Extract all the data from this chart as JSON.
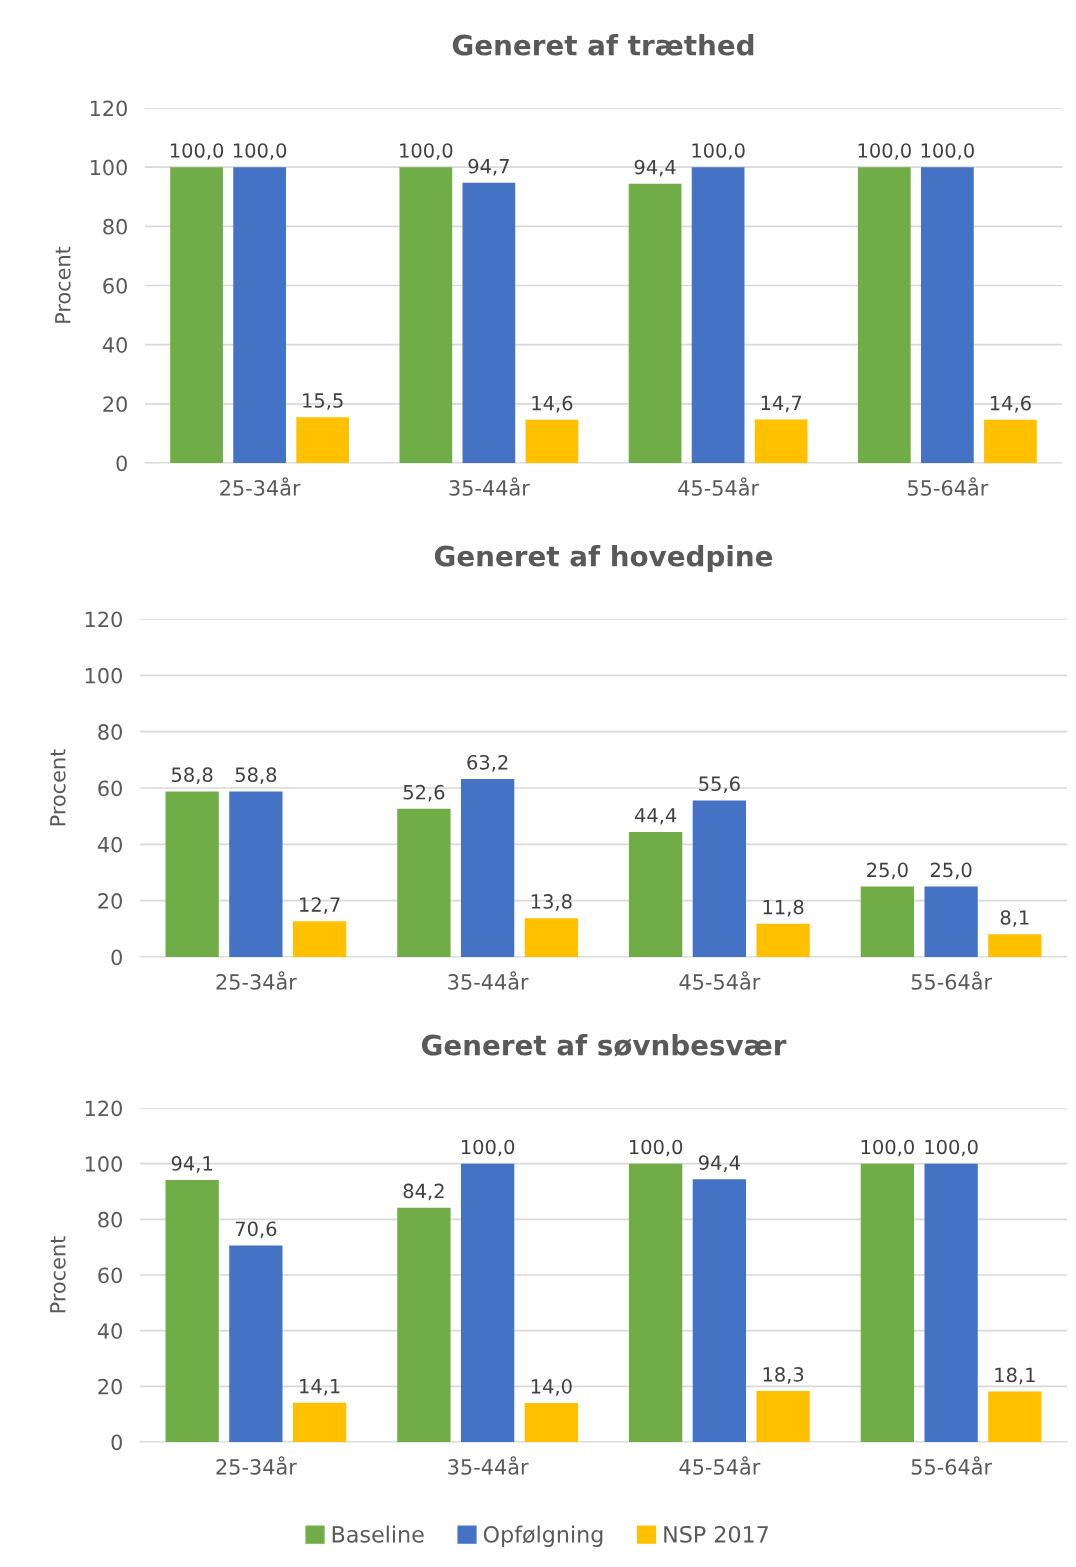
{
  "chart_data": [
    {
      "type": "bar",
      "title": "Generet af træthed",
      "ylabel": "Procent",
      "categories": [
        "25-34år",
        "35-44år",
        "45-54år",
        "55-64år"
      ],
      "ylim": [
        0,
        120
      ],
      "yticks": [
        0,
        20,
        40,
        60,
        80,
        100,
        120
      ],
      "grid": "y",
      "legend": false,
      "series": [
        {
          "color": "#70ad47",
          "values": [
            100.0,
            100.0,
            94.4,
            100.0
          ],
          "value_labels": [
            "100,0",
            "100,0",
            "94,4",
            "100,0"
          ]
        },
        {
          "color": "#4472c4",
          "values": [
            100.0,
            94.7,
            100.0,
            100.0
          ],
          "value_labels": [
            "100,0",
            "94,7",
            "100,0",
            "100,0"
          ]
        },
        {
          "color": "#ffc000",
          "values": [
            15.5,
            14.6,
            14.7,
            14.6
          ],
          "value_labels": [
            "15,5",
            "14,6",
            "14,7",
            "14,6"
          ]
        }
      ]
    },
    {
      "type": "bar",
      "title": "Generet af hovedpine",
      "ylabel": "Procent",
      "categories": [
        "25-34år",
        "35-44år",
        "45-54år",
        "55-64år"
      ],
      "ylim": [
        0,
        120
      ],
      "yticks": [
        0,
        20,
        40,
        60,
        80,
        100,
        120
      ],
      "grid": "y",
      "legend": false,
      "series": [
        {
          "color": "#70ad47",
          "values": [
            58.8,
            52.6,
            44.4,
            25.0
          ],
          "value_labels": [
            "58,8",
            "52,6",
            "44,4",
            "25,0"
          ]
        },
        {
          "color": "#4472c4",
          "values": [
            58.8,
            63.2,
            55.6,
            25.0
          ],
          "value_labels": [
            "58,8",
            "63,2",
            "55,6",
            "25,0"
          ]
        },
        {
          "color": "#ffc000",
          "values": [
            12.7,
            13.8,
            11.8,
            8.1
          ],
          "value_labels": [
            "12,7",
            "13,8",
            "11,8",
            "8,1"
          ]
        }
      ]
    },
    {
      "type": "bar",
      "title": "Generet af søvnbesvær",
      "ylabel": "Procent",
      "categories": [
        "25-34år",
        "35-44år",
        "45-54år",
        "55-64år"
      ],
      "ylim": [
        0,
        120
      ],
      "yticks": [
        0,
        20,
        40,
        60,
        80,
        100,
        120
      ],
      "grid": "y",
      "legend": "bottom",
      "series": [
        {
          "name": "Baseline",
          "color": "#70ad47",
          "values": [
            94.1,
            84.2,
            100.0,
            100.0
          ],
          "value_labels": [
            "94,1",
            "84,2",
            "100,0",
            "100,0"
          ]
        },
        {
          "name": "Opfølgning",
          "color": "#4472c4",
          "values": [
            70.6,
            100.0,
            94.4,
            100.0
          ],
          "value_labels": [
            "70,6",
            "100,0",
            "94,4",
            "100,0"
          ]
        },
        {
          "name": "NSP 2017",
          "color": "#ffc000",
          "values": [
            14.1,
            14.0,
            18.3,
            18.1
          ],
          "value_labels": [
            "14,1",
            "14,0",
            "18,3",
            "18,1"
          ]
        }
      ]
    }
  ]
}
